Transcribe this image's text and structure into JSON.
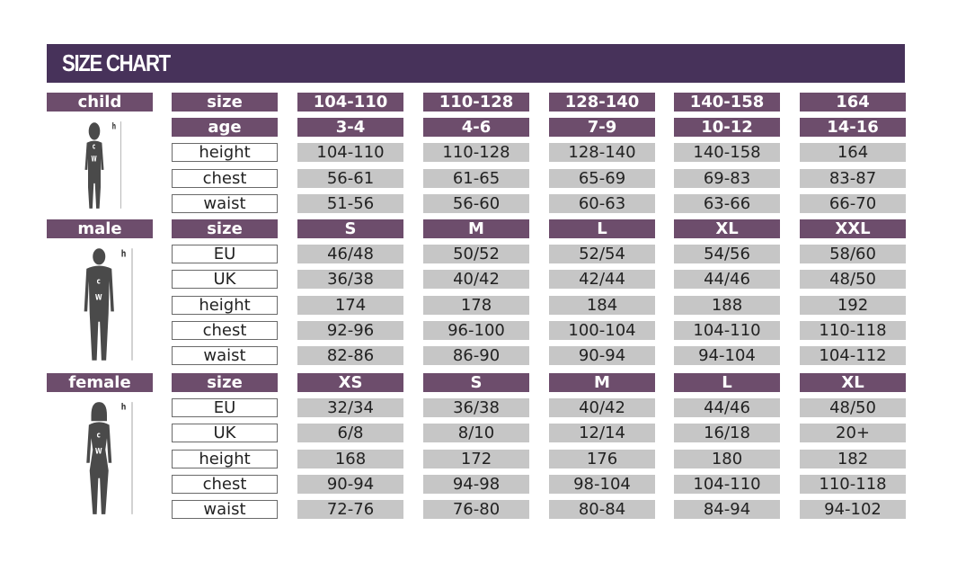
{
  "title": "SIZE CHART",
  "colors": {
    "title_bar": "#47325a",
    "header": "#6d4d6c",
    "value_cell": "#c6c6c6",
    "figure": "#4a4a4a"
  },
  "sections": [
    {
      "name": "child",
      "figure_icon": "child-silhouette-icon",
      "rows": [
        {
          "label": "size",
          "header": true,
          "values": [
            "104-110",
            "110-128",
            "128-140",
            "140-158",
            "164"
          ]
        },
        {
          "label": "age",
          "header": true,
          "values": [
            "3-4",
            "4-6",
            "7-9",
            "10-12",
            "14-16"
          ]
        },
        {
          "label": "height",
          "values": [
            "104-110",
            "110-128",
            "128-140",
            "140-158",
            "164"
          ]
        },
        {
          "label": "chest",
          "values": [
            "56-61",
            "61-65",
            "65-69",
            "69-83",
            "83-87"
          ]
        },
        {
          "label": "waist",
          "values": [
            "51-56",
            "56-60",
            "60-63",
            "63-66",
            "66-70"
          ]
        }
      ]
    },
    {
      "name": "male",
      "figure_icon": "male-silhouette-icon",
      "rows": [
        {
          "label": "size",
          "header": true,
          "values": [
            "S",
            "M",
            "L",
            "XL",
            "XXL"
          ]
        },
        {
          "label": "EU",
          "values": [
            "46/48",
            "50/52",
            "52/54",
            "54/56",
            "58/60"
          ]
        },
        {
          "label": "UK",
          "values": [
            "36/38",
            "40/42",
            "42/44",
            "44/46",
            "48/50"
          ]
        },
        {
          "label": "height",
          "values": [
            "174",
            "178",
            "184",
            "188",
            "192"
          ]
        },
        {
          "label": "chest",
          "values": [
            "92-96",
            "96-100",
            "100-104",
            "104-110",
            "110-118"
          ]
        },
        {
          "label": "waist",
          "values": [
            "82-86",
            "86-90",
            "90-94",
            "94-104",
            "104-112"
          ]
        }
      ]
    },
    {
      "name": "female",
      "figure_icon": "female-silhouette-icon",
      "rows": [
        {
          "label": "size",
          "header": true,
          "values": [
            "XS",
            "S",
            "M",
            "L",
            "XL"
          ]
        },
        {
          "label": "EU",
          "values": [
            "32/34",
            "36/38",
            "40/42",
            "44/46",
            "48/50"
          ]
        },
        {
          "label": "UK",
          "values": [
            "6/8",
            "8/10",
            "12/14",
            "16/18",
            "20+"
          ]
        },
        {
          "label": "height",
          "values": [
            "168",
            "172",
            "176",
            "180",
            "182"
          ]
        },
        {
          "label": "chest",
          "values": [
            "90-94",
            "94-98",
            "98-104",
            "104-110",
            "110-118"
          ]
        },
        {
          "label": "waist",
          "values": [
            "72-76",
            "76-80",
            "80-84",
            "84-94",
            "94-102"
          ]
        }
      ]
    }
  ],
  "figure_marks": {
    "height": "h",
    "chest": "c",
    "waist": "w"
  }
}
